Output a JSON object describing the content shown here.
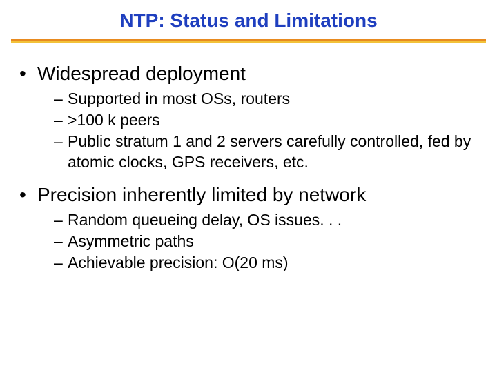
{
  "slide": {
    "title": "NTP: Status and Limitations",
    "title_color": "#1f3fbf",
    "title_fontsize": 28,
    "rule_color_top": "#e88a1f",
    "rule_color_bottom": "#f2c23a",
    "body_color": "#000000",
    "bullets": [
      {
        "text": "Widespread deployment",
        "sub": [
          "Supported in most OSs, routers",
          ">100 k peers",
          "Public stratum 1 and 2 servers carefully controlled, fed by atomic clocks, GPS receivers, etc."
        ]
      },
      {
        "text": "Precision inherently limited by network",
        "sub": [
          "Random queueing delay, OS issues. . .",
          "Asymmetric paths",
          "Achievable precision: O(20 ms)"
        ]
      }
    ]
  }
}
